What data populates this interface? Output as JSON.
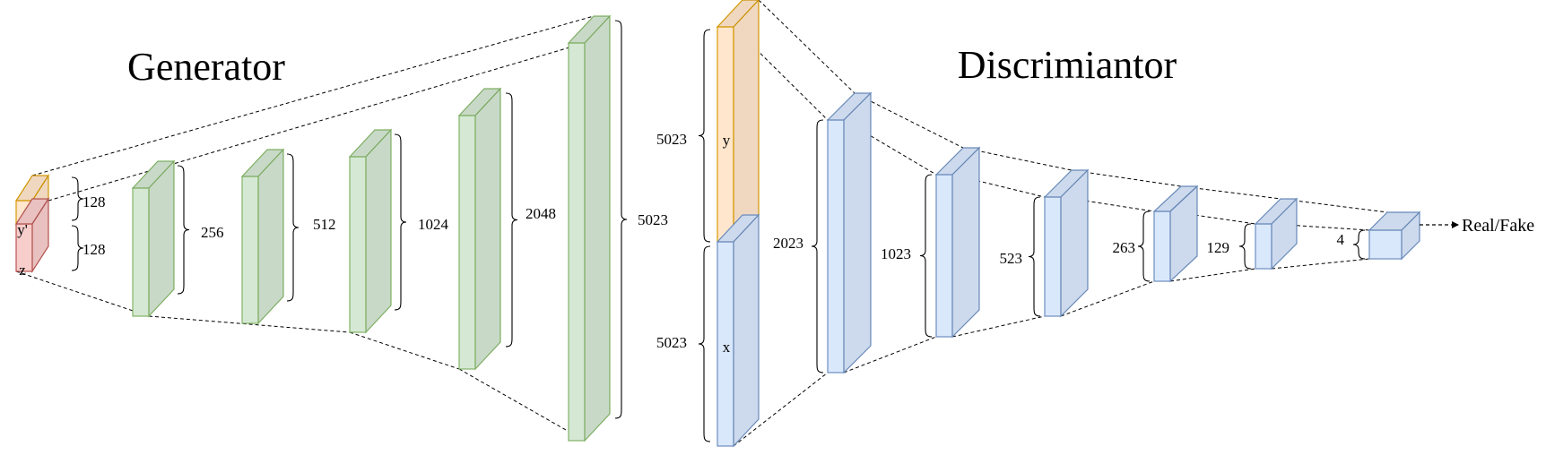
{
  "generator": {
    "title": "Generator",
    "input_labels": [
      "y'",
      "z"
    ],
    "input_sizes": [
      "128",
      "128"
    ],
    "layer_sizes": [
      "256",
      "512",
      "1024",
      "2048",
      "5023"
    ]
  },
  "discriminator": {
    "title": "Discrimiantor",
    "input_labels": [
      "y",
      "x"
    ],
    "input_sizes": [
      "5023",
      "5023"
    ],
    "layer_sizes": [
      "2023",
      "1023",
      "523",
      "263",
      "129",
      "4"
    ],
    "output_label": "Real/Fake"
  },
  "colors": {
    "green_fill": "#d5e8d4",
    "green_stroke": "#82b366",
    "blue_fill": "#dae8fc",
    "blue_stroke": "#6c8ebf",
    "orange_fill": "#ffe6cc",
    "orange_stroke": "#d79b00",
    "red_fill": "#f8cecc",
    "red_stroke": "#b85450"
  }
}
